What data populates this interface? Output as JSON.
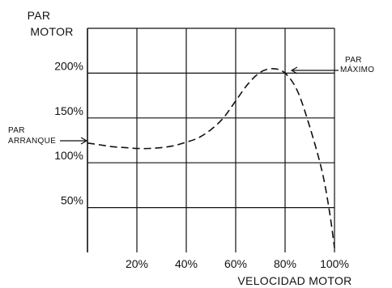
{
  "chart_data": {
    "type": "line",
    "title": "",
    "ylabel": [
      "PAR",
      "MOTOR"
    ],
    "xlabel": "VELOCIDAD MOTOR",
    "xlim": [
      0,
      100
    ],
    "ylim": [
      0,
      250
    ],
    "x_ticks": [
      {
        "value": 20,
        "label": "20%"
      },
      {
        "value": 40,
        "label": "40%"
      },
      {
        "value": 60,
        "label": "60%"
      },
      {
        "value": 80,
        "label": "80%"
      },
      {
        "value": 100,
        "label": "100%"
      }
    ],
    "y_ticks": [
      {
        "value": 50,
        "label": "50%"
      },
      {
        "value": 100,
        "label": "100%"
      },
      {
        "value": 150,
        "label": "150%"
      },
      {
        "value": 200,
        "label": "200%"
      }
    ],
    "grid": true,
    "line_style": "dashed",
    "series": [
      {
        "x": [
          0,
          5,
          10,
          15,
          20,
          25,
          30,
          35,
          40,
          45,
          50,
          55,
          60,
          65,
          70,
          75,
          80,
          85,
          90,
          95,
          98,
          100
        ],
        "y": [
          122,
          120,
          118,
          117,
          116,
          116,
          117,
          119,
          123,
          128,
          137,
          150,
          169,
          188,
          201,
          205,
          200,
          180,
          140,
          90,
          45,
          5
        ]
      }
    ],
    "annotations": [
      {
        "text": [
          "PAR",
          "ARRANQUE"
        ],
        "x": 0,
        "y": 122
      },
      {
        "text": [
          "PAR",
          "MÁXIMO"
        ],
        "x": 77,
        "y": 205
      }
    ]
  }
}
